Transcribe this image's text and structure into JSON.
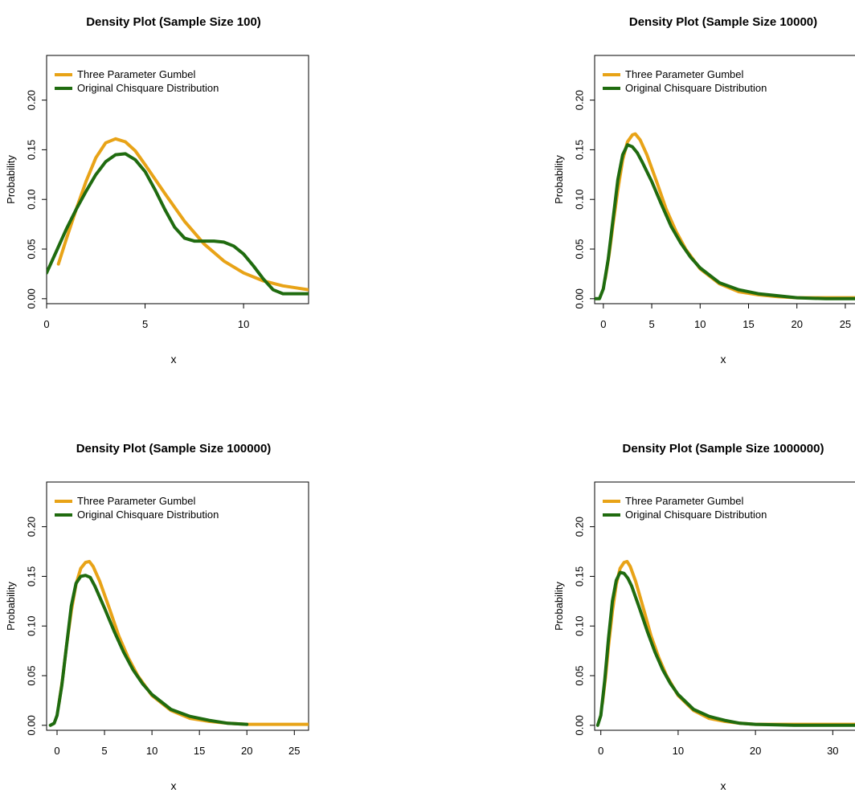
{
  "colors": {
    "gumbel": "#E8A317",
    "chisquare": "#1F6B0F"
  },
  "chart_data": [
    {
      "type": "line",
      "title": "Density Plot (Sample Size 100)",
      "xlabel": "x",
      "ylabel": "Probability",
      "xlim": [
        0,
        13.3
      ],
      "ylim": [
        -0.005,
        0.245
      ],
      "x_ticks": [
        0,
        5,
        10
      ],
      "y_ticks": [
        0.0,
        0.05,
        0.1,
        0.15,
        0.2
      ],
      "y_tick_labels": [
        "0.00",
        "0.05",
        "0.10",
        "0.15",
        "0.20"
      ],
      "legend": {
        "position": "top-left",
        "entries": [
          "Three Parameter Gumbel",
          "Original Chisquare Distribution"
        ]
      },
      "series": [
        {
          "name": "Three Parameter Gumbel",
          "x": [
            0.6,
            1,
            1.5,
            2,
            2.5,
            3,
            3.5,
            4,
            4.5,
            5,
            6,
            7,
            8,
            9,
            10,
            11,
            12,
            13.3
          ],
          "y": [
            0.035,
            0.06,
            0.09,
            0.118,
            0.142,
            0.157,
            0.161,
            0.158,
            0.149,
            0.135,
            0.106,
            0.078,
            0.055,
            0.038,
            0.026,
            0.018,
            0.013,
            0.009
          ]
        },
        {
          "name": "Original Chisquare Distribution",
          "x": [
            0,
            0.5,
            1,
            1.5,
            2,
            2.5,
            3,
            3.5,
            4,
            4.5,
            5,
            5.5,
            6,
            6.5,
            7,
            7.5,
            8,
            8.5,
            9,
            9.5,
            10,
            10.5,
            11,
            11.5,
            12,
            13.3
          ],
          "y": [
            0.026,
            0.048,
            0.07,
            0.09,
            0.108,
            0.125,
            0.138,
            0.145,
            0.146,
            0.14,
            0.128,
            0.11,
            0.09,
            0.072,
            0.061,
            0.058,
            0.058,
            0.058,
            0.057,
            0.053,
            0.045,
            0.033,
            0.02,
            0.009,
            0.005,
            0.005
          ]
        }
      ]
    },
    {
      "type": "line",
      "title": "Density Plot (Sample Size 10000)",
      "xlabel": "x",
      "ylabel": "Probability",
      "xlim": [
        -0.9,
        26.5
      ],
      "ylim": [
        -0.005,
        0.245
      ],
      "x_ticks": [
        0,
        5,
        10,
        15,
        20,
        25
      ],
      "x_tick_labels": [
        "0",
        "5",
        "10",
        "15",
        "20",
        "25"
      ],
      "y_ticks": [
        0.0,
        0.05,
        0.1,
        0.15,
        0.2
      ],
      "y_tick_labels": [
        "0.00",
        "0.05",
        "0.10",
        "0.15",
        "0.20"
      ],
      "legend": {
        "position": "top-left",
        "entries": [
          "Three Parameter Gumbel",
          "Original Chisquare Distribution"
        ]
      },
      "series": [
        {
          "name": "Three Parameter Gumbel",
          "x": [
            0.2,
            0.6,
            1,
            1.5,
            2,
            2.5,
            3,
            3.3,
            3.8,
            4.5,
            5.5,
            6.5,
            7.5,
            8.5,
            10,
            12,
            14,
            16,
            18,
            20,
            23,
            26.5
          ],
          "y": [
            0.02,
            0.045,
            0.075,
            0.11,
            0.14,
            0.158,
            0.165,
            0.166,
            0.16,
            0.145,
            0.118,
            0.09,
            0.068,
            0.05,
            0.03,
            0.015,
            0.007,
            0.004,
            0.002,
            0.001,
            0.001,
            0.001
          ]
        },
        {
          "name": "Original Chisquare Distribution",
          "x": [
            -0.9,
            -0.4,
            0,
            0.5,
            1,
            1.5,
            2,
            2.5,
            3,
            3.5,
            4,
            5,
            6,
            7,
            8,
            9,
            10,
            12,
            14,
            16,
            18,
            20,
            23,
            26.5
          ],
          "y": [
            0.0,
            0.0,
            0.01,
            0.04,
            0.08,
            0.12,
            0.145,
            0.155,
            0.153,
            0.147,
            0.138,
            0.118,
            0.095,
            0.073,
            0.056,
            0.042,
            0.031,
            0.016,
            0.009,
            0.005,
            0.003,
            0.001,
            0.0,
            0.0
          ]
        }
      ]
    },
    {
      "type": "line",
      "title": "Density Plot (Sample Size 100000)",
      "xlabel": "x",
      "ylabel": "Probability",
      "xlim": [
        -1.1,
        26.5
      ],
      "ylim": [
        -0.005,
        0.245
      ],
      "x_ticks": [
        0,
        5,
        10,
        15,
        20,
        25
      ],
      "y_ticks": [
        0.0,
        0.05,
        0.1,
        0.15,
        0.2
      ],
      "y_tick_labels": [
        "0.00",
        "0.05",
        "0.10",
        "0.15",
        "0.20"
      ],
      "legend": {
        "position": "top-left",
        "entries": [
          "Three Parameter Gumbel",
          "Original Chisquare Distribution"
        ]
      },
      "series": [
        {
          "name": "Three Parameter Gumbel",
          "x": [
            0.2,
            0.6,
            1,
            1.5,
            2,
            2.5,
            3,
            3.4,
            3.8,
            4.5,
            5.5,
            6.5,
            7.5,
            8.5,
            10,
            12,
            14,
            16,
            18,
            20,
            23,
            26.5
          ],
          "y": [
            0.022,
            0.048,
            0.08,
            0.115,
            0.142,
            0.158,
            0.164,
            0.165,
            0.16,
            0.145,
            0.118,
            0.09,
            0.068,
            0.05,
            0.03,
            0.015,
            0.007,
            0.004,
            0.002,
            0.001,
            0.001,
            0.001
          ]
        },
        {
          "name": "Original Chisquare Distribution",
          "x": [
            -0.7,
            -0.3,
            0,
            0.5,
            1,
            1.5,
            2,
            2.5,
            3,
            3.5,
            4,
            5,
            6,
            7,
            8,
            9,
            10,
            12,
            14,
            16,
            18,
            20
          ],
          "y": [
            0.0,
            0.002,
            0.01,
            0.04,
            0.08,
            0.12,
            0.143,
            0.15,
            0.151,
            0.149,
            0.14,
            0.118,
            0.095,
            0.074,
            0.056,
            0.042,
            0.031,
            0.016,
            0.009,
            0.005,
            0.002,
            0.001
          ]
        }
      ]
    },
    {
      "type": "line",
      "title": "Density Plot (Sample Size 1000000)",
      "xlabel": "x",
      "ylabel": "Probability",
      "xlim": [
        -0.8,
        33.5
      ],
      "ylim": [
        -0.005,
        0.245
      ],
      "x_ticks": [
        0,
        10,
        20,
        30
      ],
      "y_ticks": [
        0.0,
        0.05,
        0.1,
        0.15,
        0.2
      ],
      "y_tick_labels": [
        "0.00",
        "0.05",
        "0.10",
        "0.15",
        "0.20"
      ],
      "legend": {
        "position": "top-left",
        "entries": [
          "Three Parameter Gumbel",
          "Original Chisquare Distribution"
        ]
      },
      "series": [
        {
          "name": "Three Parameter Gumbel",
          "x": [
            0.2,
            0.6,
            1,
            1.5,
            2,
            2.5,
            3,
            3.4,
            3.8,
            4.5,
            5.5,
            6.5,
            7.5,
            8.5,
            10,
            12,
            14,
            16,
            18,
            20,
            25,
            33.5
          ],
          "y": [
            0.022,
            0.048,
            0.08,
            0.115,
            0.142,
            0.158,
            0.164,
            0.165,
            0.16,
            0.145,
            0.118,
            0.09,
            0.068,
            0.05,
            0.03,
            0.015,
            0.007,
            0.004,
            0.002,
            0.001,
            0.001,
            0.001
          ]
        },
        {
          "name": "Original Chisquare Distribution",
          "x": [
            -0.4,
            0,
            0.5,
            1,
            1.5,
            2,
            2.5,
            3,
            3.5,
            4,
            5,
            6,
            7,
            8,
            9,
            10,
            12,
            14,
            16,
            18,
            20,
            25,
            33.5
          ],
          "y": [
            0.0,
            0.01,
            0.045,
            0.088,
            0.125,
            0.146,
            0.154,
            0.153,
            0.148,
            0.14,
            0.118,
            0.095,
            0.074,
            0.056,
            0.042,
            0.031,
            0.016,
            0.009,
            0.005,
            0.002,
            0.001,
            0.0,
            0.0
          ]
        }
      ]
    }
  ]
}
